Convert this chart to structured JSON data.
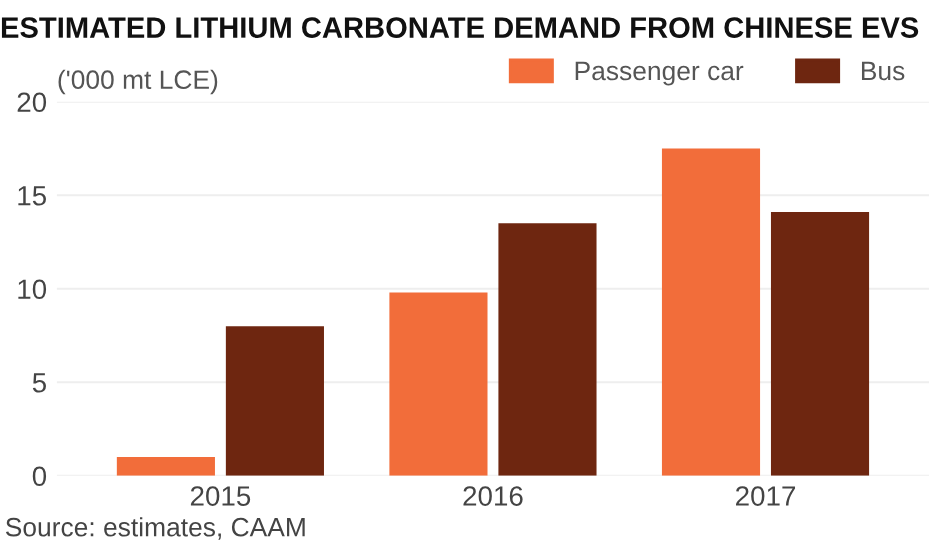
{
  "chart_data": {
    "type": "bar",
    "title": "ESTIMATED LITHIUM CARBONATE DEMAND FROM CHINESE EVS",
    "ylabel": "('000 mt LCE)",
    "categories": [
      "2015",
      "2016",
      "2017"
    ],
    "series": [
      {
        "name": "Passenger car",
        "color": "#f26d3a",
        "values": [
          1.0,
          9.8,
          17.5
        ]
      },
      {
        "name": "Bus",
        "color": "#6e2610",
        "values": [
          8.0,
          13.5,
          14.1
        ]
      }
    ],
    "ylim": [
      0,
      20
    ],
    "yticks": [
      0,
      5,
      10,
      15,
      20
    ],
    "grid": "y",
    "legend": "top right",
    "annotations": [
      "Source: estimates, CAAM"
    ]
  }
}
